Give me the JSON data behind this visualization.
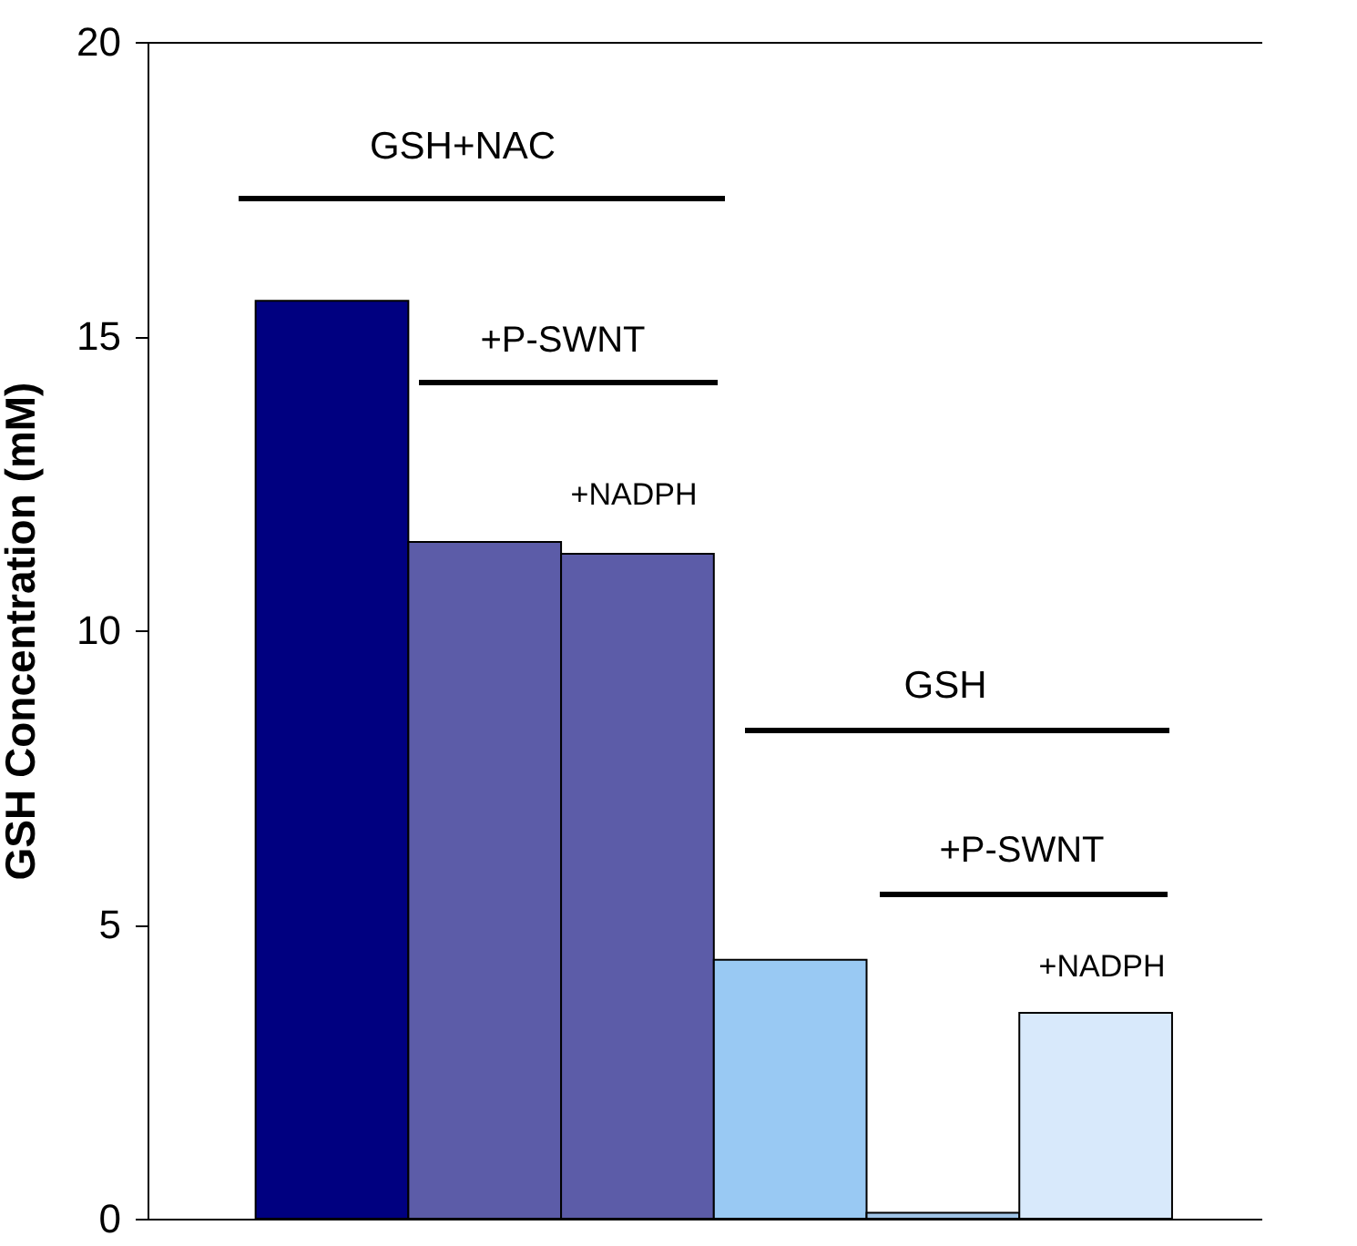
{
  "chart_data": {
    "type": "bar",
    "ylabel": "GSH Concentration (mM)",
    "categories": [
      null,
      null,
      null,
      null,
      null,
      null
    ],
    "values": [
      15.6,
      11.5,
      11.3,
      4.4,
      0.1,
      3.5
    ],
    "colors": [
      "#000080",
      "#5c5ca8",
      "#5c5ca8",
      "#99c9f3",
      "#9fc3e6",
      "#d8e9fb"
    ],
    "ylim": [
      0,
      20
    ],
    "yticks": [
      0,
      5,
      10,
      15,
      20
    ],
    "annotations": [
      "GSH+NAC",
      "+P-SWNT",
      "+NADPH",
      "GSH",
      "+P-SWNT",
      "+NADPH"
    ]
  }
}
